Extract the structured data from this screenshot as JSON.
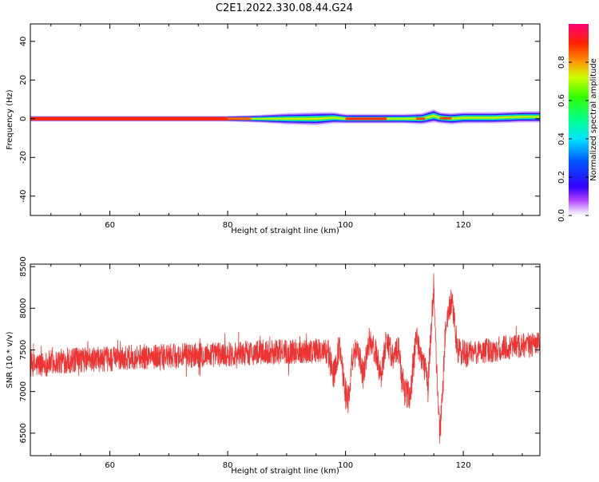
{
  "title": "C2E1.2022.330.08.44.G24",
  "chart_data": [
    {
      "type": "heatmap",
      "xlabel": "Height of straight line (km)",
      "ylabel": "Frequency (Hz)",
      "xlim": [
        46.5,
        133
      ],
      "ylim": [
        -50,
        49
      ],
      "xticks": [
        60,
        80,
        100,
        120
      ],
      "yticks": [
        40,
        20,
        0,
        -20,
        -40
      ],
      "colorbar": {
        "label": "Normalized spectral amplitude",
        "range": [
          0,
          1
        ],
        "ticks": [
          "0.0",
          "0.2",
          "0.4",
          "0.6",
          "0.8"
        ],
        "colormap": "hsv-reversed"
      },
      "ridge": {
        "x": [
          46.5,
          60,
          70,
          75,
          80,
          85,
          90,
          95,
          98,
          100,
          105,
          110,
          113,
          115,
          116,
          118,
          120,
          125,
          130,
          133
        ],
        "center_freq": [
          0,
          0,
          0,
          0,
          0,
          0,
          0,
          0,
          0.5,
          0,
          0,
          0,
          0,
          1.5,
          0.5,
          0,
          0.5,
          0.5,
          1,
          1
        ],
        "half_width": [
          1.5,
          1.5,
          1.5,
          1.5,
          1.5,
          2,
          3,
          3.5,
          3,
          2.5,
          2.5,
          2.5,
          3,
          3.5,
          3,
          3,
          3,
          3,
          3,
          3
        ]
      }
    },
    {
      "type": "line",
      "xlabel": "Height of straight line (km)",
      "ylabel": "SNR (10 * v/v)",
      "xlim": [
        46.5,
        133
      ],
      "ylim": [
        6230,
        8530
      ],
      "xticks": [
        60,
        80,
        100,
        120
      ],
      "yticks": [
        8500,
        8000,
        7500,
        7000,
        6500
      ],
      "color": "#ee3333",
      "series": [
        {
          "x": [
            46.5,
            50,
            55,
            60,
            65,
            70,
            75,
            80,
            85,
            90,
            95,
            97,
            98,
            99,
            100,
            100.5,
            101,
            102,
            103,
            104,
            105,
            106,
            107,
            108,
            109,
            110,
            111,
            112,
            113,
            114,
            115,
            115.5,
            116,
            116.5,
            117,
            118,
            119,
            120,
            125,
            130,
            133
          ],
          "y": [
            7300,
            7350,
            7380,
            7390,
            7420,
            7420,
            7440,
            7450,
            7470,
            7480,
            7490,
            7480,
            7200,
            7550,
            7000,
            6900,
            7300,
            7550,
            7200,
            7600,
            7500,
            7200,
            7650,
            7400,
            7500,
            7000,
            6950,
            7650,
            7400,
            7100,
            8300,
            7200,
            6500,
            7000,
            7800,
            8100,
            7500,
            7450,
            7500,
            7550,
            7570
          ]
        }
      ]
    }
  ]
}
